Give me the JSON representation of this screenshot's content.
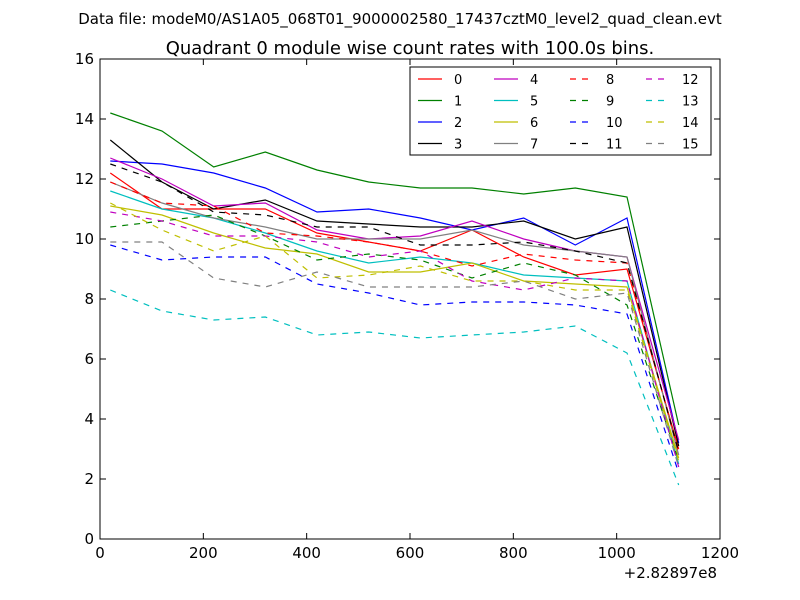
{
  "figure": {
    "suptitle": "Data file: modeM0/AS1A05_068T01_9000002580_17437cztM0_level2_quad_clean.evt"
  },
  "chart_data": {
    "type": "line",
    "title": "Quadrant 0 module wise count rates with 100.0s bins.",
    "xlabel": "",
    "ylabel": "",
    "x_offset_label": "+2.82897e8",
    "xlim": [
      0,
      1200
    ],
    "ylim": [
      0,
      16
    ],
    "xticks": [
      0,
      200,
      400,
      600,
      800,
      1000,
      1200
    ],
    "yticks": [
      0,
      2,
      4,
      6,
      8,
      10,
      12,
      14,
      16
    ],
    "grid": false,
    "legend_position": "top-right",
    "legend_columns": 4,
    "x": [
      20,
      120,
      220,
      320,
      420,
      520,
      620,
      720,
      820,
      920,
      1020,
      1120
    ],
    "series": [
      {
        "name": "0",
        "color": "#ff0000",
        "dash": "solid",
        "values": [
          12.2,
          11.0,
          11.0,
          11.0,
          10.2,
          9.9,
          9.6,
          10.3,
          9.4,
          8.8,
          9.0,
          3.0
        ]
      },
      {
        "name": "1",
        "color": "#008000",
        "dash": "solid",
        "values": [
          14.2,
          13.6,
          12.4,
          12.9,
          12.3,
          11.9,
          11.7,
          11.7,
          11.5,
          11.7,
          11.4,
          3.8
        ]
      },
      {
        "name": "2",
        "color": "#0000ff",
        "dash": "solid",
        "values": [
          12.6,
          12.5,
          12.2,
          11.7,
          10.9,
          11.0,
          10.7,
          10.3,
          10.7,
          9.8,
          10.7,
          3.2
        ]
      },
      {
        "name": "3",
        "color": "#000000",
        "dash": "solid",
        "values": [
          13.3,
          11.9,
          11.0,
          11.3,
          10.6,
          10.5,
          10.4,
          10.4,
          10.6,
          10.0,
          10.4,
          3.1
        ]
      },
      {
        "name": "4",
        "color": "#bf00bf",
        "dash": "solid",
        "values": [
          12.7,
          12.0,
          11.1,
          11.2,
          10.3,
          10.0,
          10.1,
          10.6,
          10.0,
          9.6,
          9.4,
          3.3
        ]
      },
      {
        "name": "5",
        "color": "#00bfbf",
        "dash": "solid",
        "values": [
          11.6,
          11.0,
          10.7,
          10.2,
          9.6,
          9.2,
          9.4,
          9.2,
          8.8,
          8.7,
          8.6,
          2.5
        ]
      },
      {
        "name": "6",
        "color": "#bfbf00",
        "dash": "solid",
        "values": [
          11.1,
          10.8,
          10.2,
          9.7,
          9.5,
          8.9,
          8.9,
          9.2,
          8.6,
          8.5,
          8.4,
          2.7
        ]
      },
      {
        "name": "7",
        "color": "#808080",
        "dash": "solid",
        "values": [
          11.9,
          11.2,
          10.7,
          10.4,
          10.0,
          10.0,
          10.0,
          10.3,
          9.8,
          9.6,
          9.4,
          2.8
        ]
      },
      {
        "name": "8",
        "color": "#ff0000",
        "dash": "dashed",
        "values": [
          11.9,
          11.2,
          11.1,
          10.2,
          10.1,
          9.9,
          9.6,
          9.1,
          9.5,
          9.3,
          9.2,
          2.9
        ]
      },
      {
        "name": "9",
        "color": "#008000",
        "dash": "dashed",
        "values": [
          10.4,
          10.6,
          10.8,
          10.1,
          9.3,
          9.5,
          9.3,
          8.7,
          9.2,
          8.8,
          7.8,
          2.6
        ]
      },
      {
        "name": "10",
        "color": "#0000ff",
        "dash": "dashed",
        "values": [
          9.8,
          9.3,
          9.4,
          9.4,
          8.5,
          8.2,
          7.8,
          7.9,
          7.9,
          7.8,
          7.5,
          2.2
        ]
      },
      {
        "name": "11",
        "color": "#000000",
        "dash": "dashed",
        "values": [
          12.5,
          11.9,
          10.9,
          10.8,
          10.4,
          10.4,
          9.8,
          9.8,
          9.9,
          9.6,
          9.2,
          2.9
        ]
      },
      {
        "name": "12",
        "color": "#bf00bf",
        "dash": "dashed",
        "values": [
          10.9,
          10.6,
          10.1,
          10.1,
          9.9,
          9.4,
          9.6,
          8.6,
          8.3,
          8.7,
          8.6,
          2.4
        ]
      },
      {
        "name": "13",
        "color": "#00bfbf",
        "dash": "dashed",
        "values": [
          8.3,
          7.6,
          7.3,
          7.4,
          6.8,
          6.9,
          6.7,
          6.8,
          6.9,
          7.1,
          6.2,
          1.8
        ]
      },
      {
        "name": "14",
        "color": "#bfbf00",
        "dash": "dashed",
        "values": [
          11.2,
          10.3,
          9.6,
          10.1,
          8.7,
          8.8,
          9.1,
          8.6,
          8.6,
          8.3,
          8.3,
          2.6
        ]
      },
      {
        "name": "15",
        "color": "#808080",
        "dash": "dashed",
        "values": [
          9.9,
          9.9,
          8.7,
          8.4,
          8.9,
          8.4,
          8.4,
          8.4,
          8.6,
          8.0,
          8.2,
          2.4
        ]
      }
    ]
  }
}
